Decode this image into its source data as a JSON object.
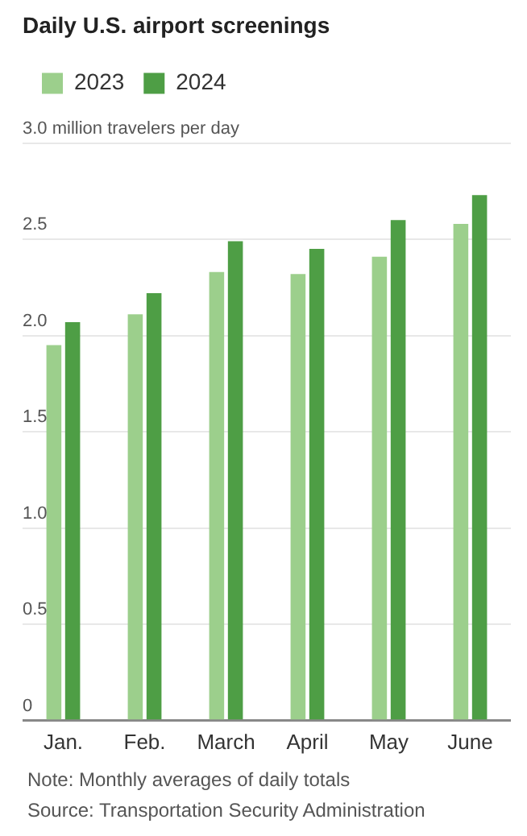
{
  "chart_data": {
    "type": "bar",
    "title": "Daily U.S. airport screenings",
    "categories": [
      "Jan.",
      "Feb.",
      "March",
      "April",
      "May",
      "June"
    ],
    "series": [
      {
        "name": "2023",
        "color": "#9ccf8c",
        "values": [
          1.95,
          2.11,
          2.33,
          2.32,
          2.41,
          2.58
        ]
      },
      {
        "name": "2024",
        "color": "#4e9e45",
        "values": [
          2.07,
          2.22,
          2.49,
          2.45,
          2.6,
          2.73
        ]
      }
    ],
    "ylim": [
      0,
      3
    ],
    "yticks": [
      0,
      {
        "value": 0.5,
        "label": "0.5"
      },
      {
        "value": 1,
        "label": "1.0"
      },
      {
        "value": 1.5,
        "label": "1.5"
      },
      {
        "value": 2,
        "label": "2.0"
      },
      {
        "value": 2.5,
        "label": "2.5"
      },
      {
        "value": 3,
        "label": "3.0 million travelers per day"
      }
    ],
    "grid": "y",
    "legend": "top left",
    "annotations": [
      "Note: Monthly averages of daily totals",
      "Source: Transportation Security Administration"
    ]
  }
}
